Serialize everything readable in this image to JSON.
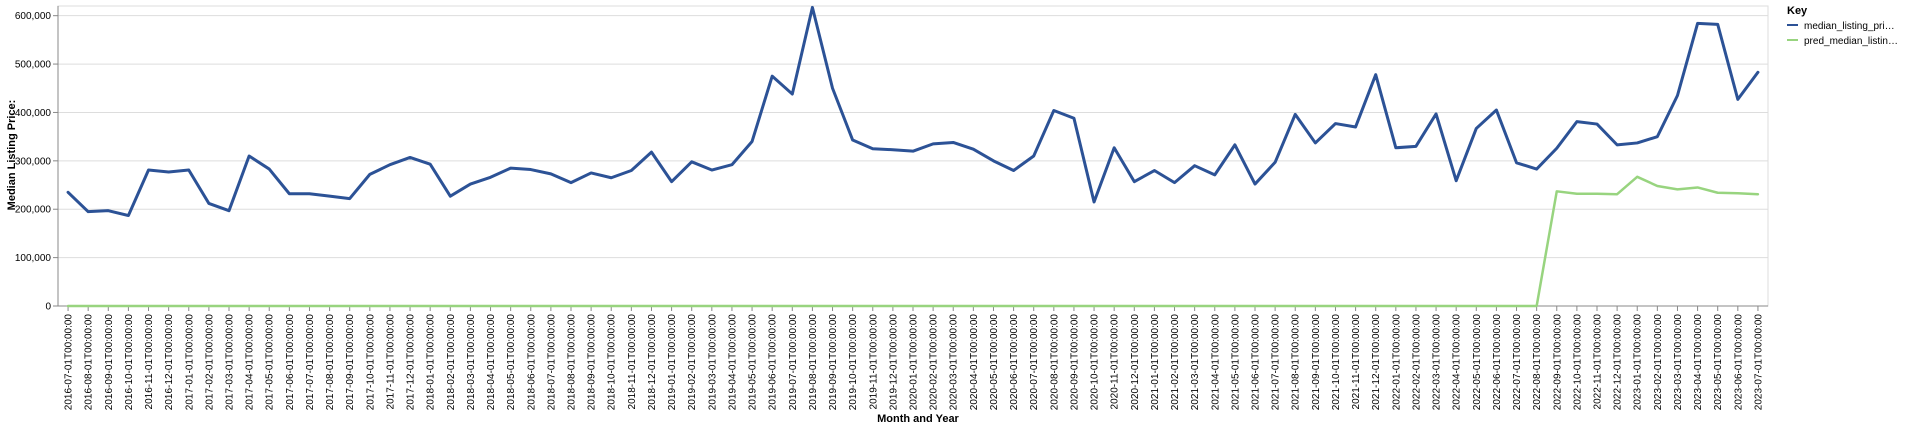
{
  "chart_data": {
    "type": "line",
    "xlabel": "Month and Year",
    "ylabel": "Median Listing Price:",
    "ylim": [
      0,
      620000
    ],
    "yticks": [
      "0",
      "100,000",
      "200,000",
      "300,000",
      "400,000",
      "500,000",
      "600,000"
    ],
    "ytick_values": [
      0,
      100000,
      200000,
      300000,
      400000,
      500000,
      600000
    ],
    "grid": true,
    "legend": {
      "title": "Key",
      "placement": "top-right",
      "entries": [
        "median_listing_pri…",
        "pred_median_listin…"
      ]
    },
    "x": [
      "2016-07-01T00:00:00",
      "2016-08-01T00:00:00",
      "2016-09-01T00:00:00",
      "2016-10-01T00:00:00",
      "2016-11-01T00:00:00",
      "2016-12-01T00:00:00",
      "2017-01-01T00:00:00",
      "2017-02-01T00:00:00",
      "2017-03-01T00:00:00",
      "2017-04-01T00:00:00",
      "2017-05-01T00:00:00",
      "2017-06-01T00:00:00",
      "2017-07-01T00:00:00",
      "2017-08-01T00:00:00",
      "2017-09-01T00:00:00",
      "2017-10-01T00:00:00",
      "2017-11-01T00:00:00",
      "2017-12-01T00:00:00",
      "2018-01-01T00:00:00",
      "2018-02-01T00:00:00",
      "2018-03-01T00:00:00",
      "2018-04-01T00:00:00",
      "2018-05-01T00:00:00",
      "2018-06-01T00:00:00",
      "2018-07-01T00:00:00",
      "2018-08-01T00:00:00",
      "2018-09-01T00:00:00",
      "2018-10-01T00:00:00",
      "2018-11-01T00:00:00",
      "2018-12-01T00:00:00",
      "2019-01-01T00:00:00",
      "2019-02-01T00:00:00",
      "2019-03-01T00:00:00",
      "2019-04-01T00:00:00",
      "2019-05-01T00:00:00",
      "2019-06-01T00:00:00",
      "2019-07-01T00:00:00",
      "2019-08-01T00:00:00",
      "2019-09-01T00:00:00",
      "2019-10-01T00:00:00",
      "2019-11-01T00:00:00",
      "2019-12-01T00:00:00",
      "2020-01-01T00:00:00",
      "2020-02-01T00:00:00",
      "2020-03-01T00:00:00",
      "2020-04-01T00:00:00",
      "2020-05-01T00:00:00",
      "2020-06-01T00:00:00",
      "2020-07-01T00:00:00",
      "2020-08-01T00:00:00",
      "2020-09-01T00:00:00",
      "2020-10-01T00:00:00",
      "2020-11-01T00:00:00",
      "2020-12-01T00:00:00",
      "2021-01-01T00:00:00",
      "2021-02-01T00:00:00",
      "2021-03-01T00:00:00",
      "2021-04-01T00:00:00",
      "2021-05-01T00:00:00",
      "2021-06-01T00:00:00",
      "2021-07-01T00:00:00",
      "2021-08-01T00:00:00",
      "2021-09-01T00:00:00",
      "2021-10-01T00:00:00",
      "2021-11-01T00:00:00",
      "2021-12-01T00:00:00",
      "2022-01-01T00:00:00",
      "2022-02-01T00:00:00",
      "2022-03-01T00:00:00",
      "2022-04-01T00:00:00",
      "2022-05-01T00:00:00",
      "2022-06-01T00:00:00",
      "2022-07-01T00:00:00",
      "2022-08-01T00:00:00",
      "2022-09-01T00:00:00",
      "2022-10-01T00:00:00",
      "2022-11-01T00:00:00",
      "2022-12-01T00:00:00",
      "2023-01-01T00:00:00",
      "2023-02-01T00:00:00",
      "2023-03-01T00:00:00",
      "2023-04-01T00:00:00",
      "2023-05-01T00:00:00",
      "2023-06-01T00:00:00",
      "2023-07-01T00:00:00"
    ],
    "series": [
      {
        "name": "median_listing_pri…",
        "color": "#2c5296",
        "values": [
          235000,
          195000,
          197000,
          187000,
          281000,
          277000,
          281000,
          212000,
          197000,
          310000,
          283000,
          232000,
          232000,
          227000,
          222000,
          272000,
          292000,
          307000,
          293000,
          227000,
          252000,
          266000,
          285000,
          282000,
          273000,
          255000,
          275000,
          265000,
          280000,
          318000,
          257000,
          298000,
          281000,
          292000,
          340000,
          475000,
          438000,
          617000,
          450000,
          343000,
          325000,
          323000,
          320000,
          335000,
          338000,
          324000,
          300000,
          280000,
          310000,
          404000,
          388000,
          215000,
          327000,
          257000,
          280000,
          255000,
          290000,
          271000,
          333000,
          252000,
          297000,
          396000,
          337000,
          377000,
          370000,
          478000,
          327000,
          330000,
          397000,
          259000,
          367000,
          405000,
          296000,
          283000,
          326000,
          381000,
          376000,
          333000,
          337000,
          350000,
          435000,
          584000,
          582000,
          427000,
          483000
        ]
      },
      {
        "name": "pred_median_listin…",
        "color": "#98d47f",
        "values": [
          0,
          0,
          0,
          0,
          0,
          0,
          0,
          0,
          0,
          0,
          0,
          0,
          0,
          0,
          0,
          0,
          0,
          0,
          0,
          0,
          0,
          0,
          0,
          0,
          0,
          0,
          0,
          0,
          0,
          0,
          0,
          0,
          0,
          0,
          0,
          0,
          0,
          0,
          0,
          0,
          0,
          0,
          0,
          0,
          0,
          0,
          0,
          0,
          0,
          0,
          0,
          0,
          0,
          0,
          0,
          0,
          0,
          0,
          0,
          0,
          0,
          0,
          0,
          0,
          0,
          0,
          0,
          0,
          0,
          0,
          0,
          0,
          0,
          0,
          237000,
          232000,
          232000,
          231000,
          267000,
          248000,
          241000,
          245000,
          234000,
          233000,
          231000
        ]
      }
    ]
  }
}
